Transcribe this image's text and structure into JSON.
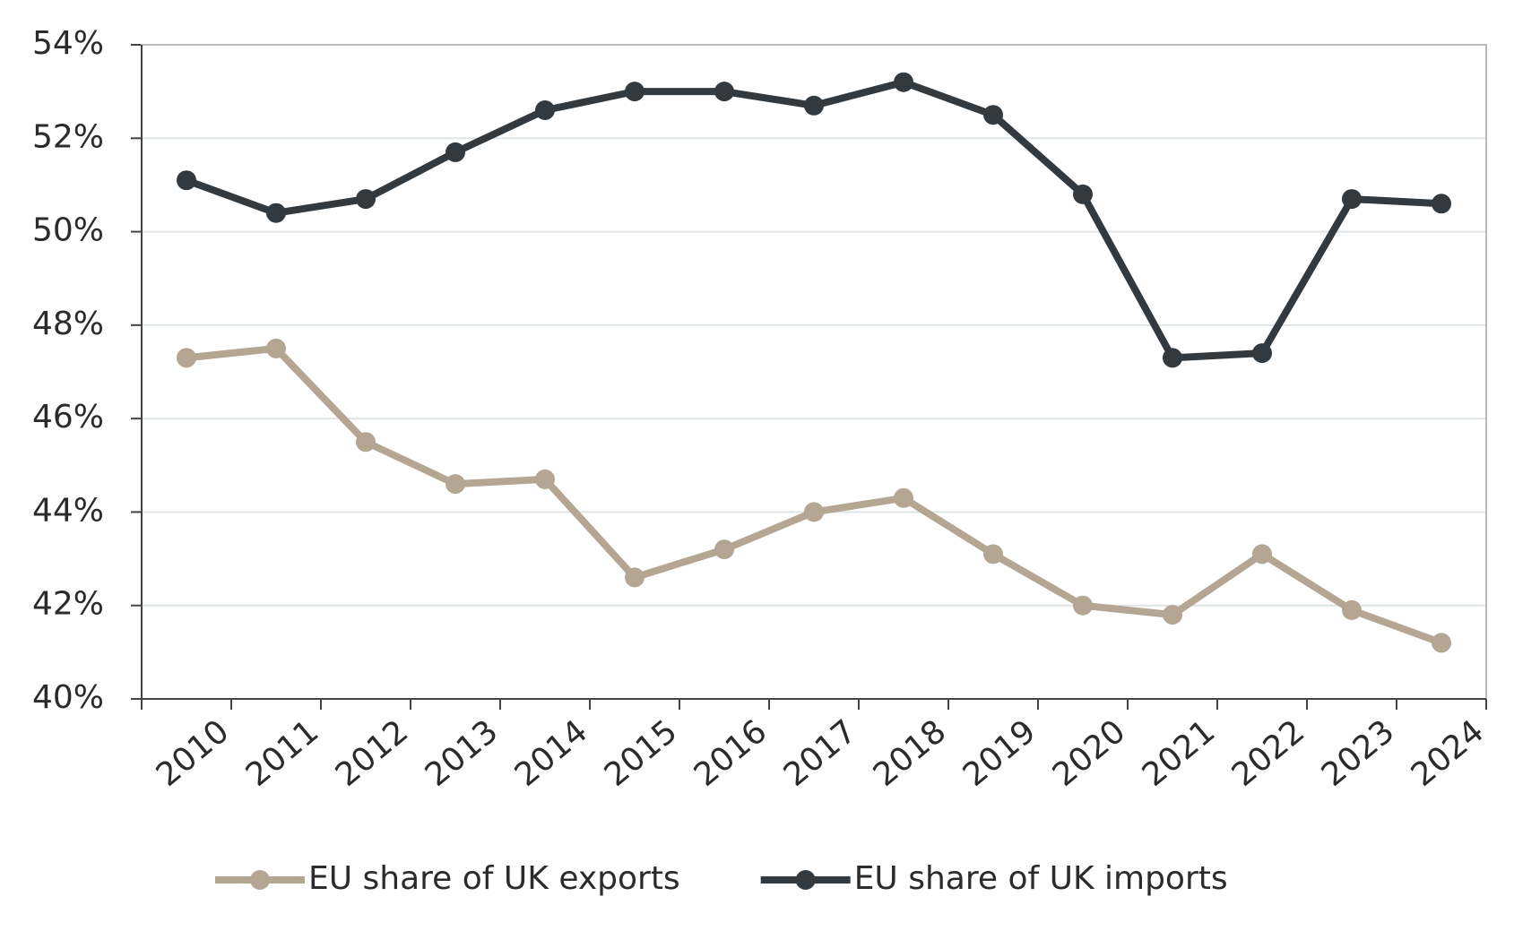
{
  "chart_data": {
    "type": "line",
    "categories": [
      "2010",
      "2011",
      "2012",
      "2013",
      "2014",
      "2015",
      "2016",
      "2017",
      "2018",
      "2019",
      "2020",
      "2021",
      "2022",
      "2023",
      "2024"
    ],
    "series": [
      {
        "name": "EU share of UK exports",
        "color": "#b5a593",
        "values": [
          47.3,
          47.5,
          45.5,
          44.6,
          44.7,
          42.6,
          43.2,
          44.0,
          44.3,
          43.1,
          42.0,
          41.8,
          43.1,
          41.9,
          41.2
        ]
      },
      {
        "name": "EU share of UK imports",
        "color": "#323a40",
        "values": [
          51.1,
          50.4,
          50.7,
          51.7,
          52.6,
          53.0,
          53.0,
          52.7,
          53.2,
          52.5,
          50.8,
          47.3,
          47.4,
          50.7,
          50.6
        ]
      }
    ],
    "ylim": [
      40,
      54
    ],
    "yticks": [
      {
        "value": 40,
        "label": "40%"
      },
      {
        "value": 42,
        "label": "42%"
      },
      {
        "value": 44,
        "label": "44%"
      },
      {
        "value": 46,
        "label": "46%"
      },
      {
        "value": 48,
        "label": "48%"
      },
      {
        "value": 50,
        "label": "50%"
      },
      {
        "value": 52,
        "label": "52%"
      },
      {
        "value": 54,
        "label": "54%"
      }
    ],
    "grid": true,
    "legend": "bottom"
  }
}
